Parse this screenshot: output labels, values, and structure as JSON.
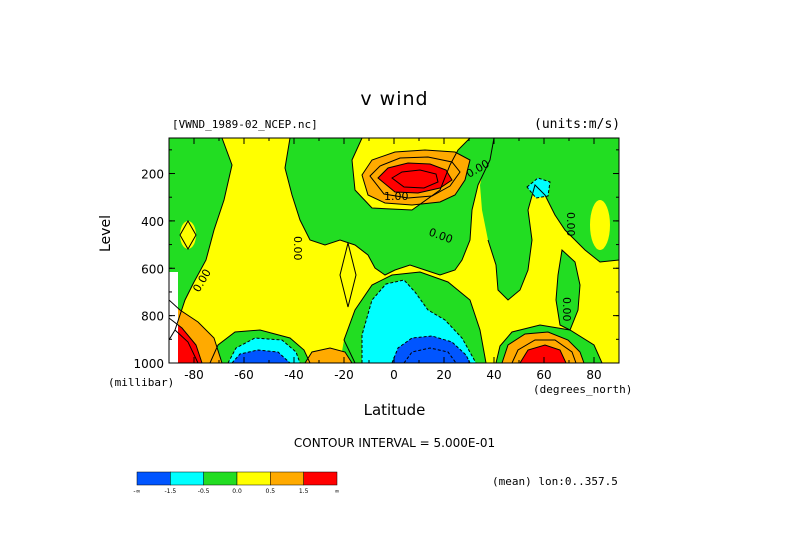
{
  "title": "v wind",
  "file_label": "[VWND_1989-02_NCEP.nc]",
  "units_label": "(units:m/s)",
  "contour_interval": "CONTOUR INTERVAL = 5.000E-01",
  "mean_label": "(mean) lon:0..357.5",
  "colors": {
    "blue": "#0055ff",
    "cyan": "#00ffff",
    "green": "#22dd22",
    "yellow": "#ffff00",
    "orange": "#ffaa00",
    "red": "#ff0000",
    "contour": "#000000"
  },
  "chart_data": {
    "type": "heatmap",
    "subtype": "filled-contour",
    "title": "v wind",
    "xlabel": "Latitude",
    "ylabel": "Level",
    "x_unit": "(degrees_north)",
    "y_unit": "(millibar)",
    "xlim": [
      -90,
      90
    ],
    "ylim": [
      1000,
      50
    ],
    "y_inverted": true,
    "x_ticks": [
      -80,
      -60,
      -40,
      -20,
      0,
      20,
      40,
      60,
      80
    ],
    "y_ticks": [
      200,
      400,
      600,
      800,
      1000
    ],
    "contour_labels": [
      "0.00",
      "1.00",
      "0.00",
      "0.00",
      "0.00",
      "0.00",
      "0.00",
      "0.00"
    ],
    "colorbar": {
      "labels": [
        "-∞",
        "-1.5",
        "-0.5",
        "0.0",
        "0.5",
        "1.5",
        "∞"
      ],
      "bin_colors": [
        "#0055ff",
        "#00ffff",
        "#22dd22",
        "#ffff00",
        "#ffaa00",
        "#ff0000"
      ]
    },
    "features": [
      {
        "kind": "maximum",
        "lat": 10,
        "level": 190,
        "value": 1.5
      },
      {
        "kind": "minimum",
        "lat": 10,
        "level": 1000,
        "value": -1.5
      },
      {
        "kind": "minimum",
        "lat": -60,
        "level": 1000,
        "value": -1.5
      },
      {
        "kind": "maximum",
        "lat": 60,
        "level": 1000,
        "value": 1.5
      },
      {
        "kind": "maximum",
        "lat": -80,
        "level": 1000,
        "value": 1.5
      },
      {
        "kind": "minimum",
        "lat": 60,
        "level": 230,
        "value": -0.5
      }
    ]
  }
}
